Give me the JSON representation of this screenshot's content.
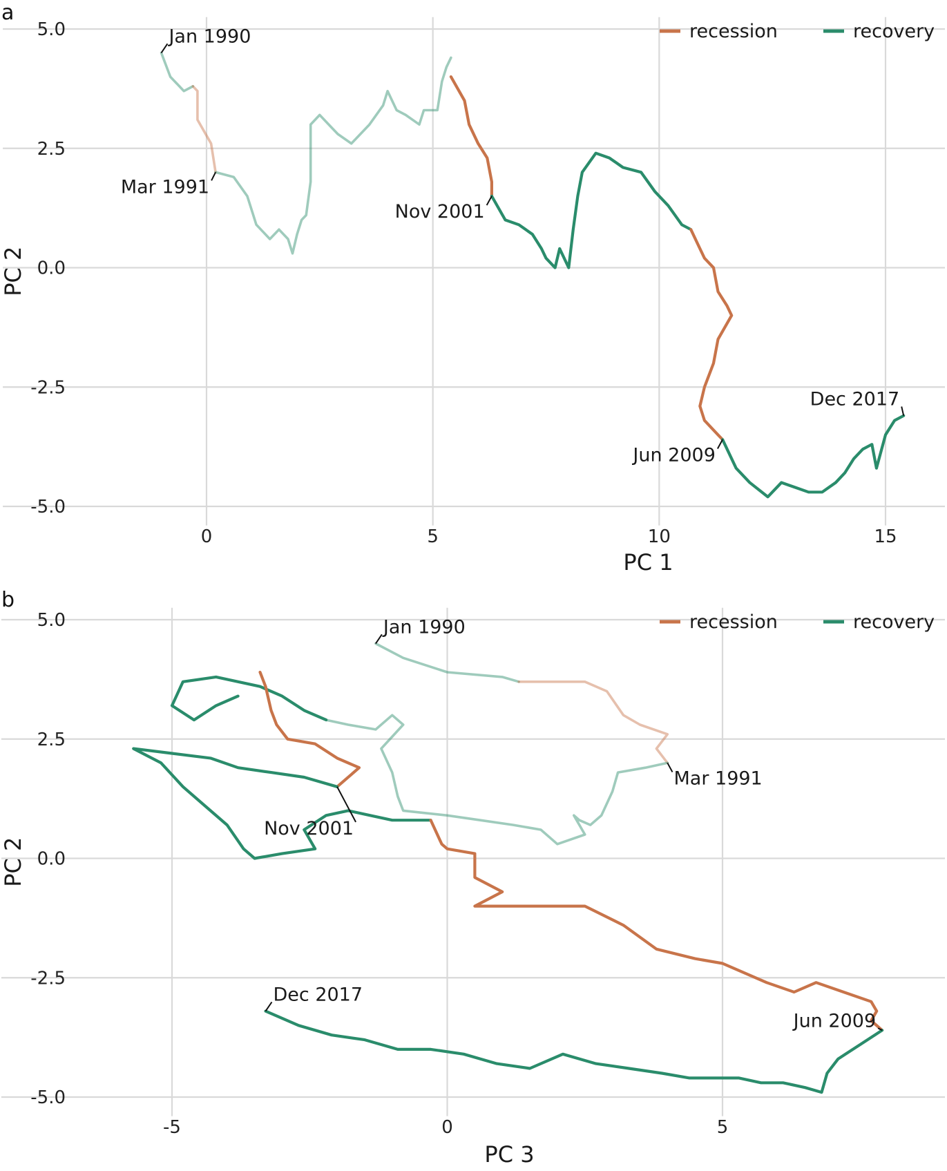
{
  "chart_data": [
    {
      "panel_label": "a",
      "type": "line",
      "xlabel": "PC 1",
      "ylabel": "PC 2",
      "xlim": [
        -4.5,
        16.5
      ],
      "ylim": [
        -5.4,
        5.25
      ],
      "x_ticks": [
        0,
        5,
        10,
        15
      ],
      "x_tick_labels": [
        "0",
        "5",
        "10",
        "15"
      ],
      "y_ticks": [
        -5,
        -2.5,
        0,
        2.5,
        5
      ],
      "y_tick_labels": [
        "-5.0",
        "-2.5",
        "0.0",
        "2.5",
        "5.0"
      ],
      "grid": true,
      "legend": {
        "placement": "top-right",
        "entries": [
          {
            "label": "recession",
            "color": "#c8744a"
          },
          {
            "label": "recovery",
            "color": "#2a8c6b"
          }
        ]
      },
      "series": [
        {
          "phase": "recovery",
          "faded": true,
          "points": [
            [
              -1.0,
              4.5
            ],
            [
              -0.8,
              4.0
            ],
            [
              -0.6,
              3.8
            ],
            [
              -0.5,
              3.7
            ],
            [
              -0.3,
              3.8
            ]
          ]
        },
        {
          "phase": "recession",
          "faded": true,
          "points": [
            [
              -0.3,
              3.8
            ],
            [
              -0.2,
              3.7
            ],
            [
              -0.2,
              3.1
            ],
            [
              0.1,
              2.6
            ],
            [
              0.2,
              2.0
            ]
          ]
        },
        {
          "phase": "recovery",
          "faded": true,
          "points": [
            [
              0.2,
              2.0
            ],
            [
              0.6,
              1.9
            ],
            [
              0.9,
              1.5
            ],
            [
              1.1,
              0.9
            ],
            [
              1.4,
              0.6
            ],
            [
              1.6,
              0.8
            ],
            [
              1.8,
              0.6
            ],
            [
              1.9,
              0.3
            ],
            [
              2.0,
              0.7
            ],
            [
              2.1,
              1.0
            ],
            [
              2.2,
              1.1
            ],
            [
              2.3,
              1.8
            ],
            [
              2.3,
              2.5
            ],
            [
              2.3,
              3.0
            ],
            [
              2.5,
              3.2
            ],
            [
              2.7,
              3.0
            ],
            [
              2.9,
              2.8
            ],
            [
              3.2,
              2.6
            ],
            [
              3.4,
              2.8
            ],
            [
              3.6,
              3.0
            ],
            [
              3.9,
              3.4
            ],
            [
              4.0,
              3.7
            ],
            [
              4.2,
              3.3
            ],
            [
              4.4,
              3.2
            ],
            [
              4.7,
              3.0
            ],
            [
              4.8,
              3.3
            ],
            [
              5.1,
              3.3
            ],
            [
              5.2,
              3.9
            ],
            [
              5.3,
              4.2
            ],
            [
              5.4,
              4.4
            ]
          ]
        },
        {
          "phase": "recession",
          "faded": false,
          "points": [
            [
              5.4,
              4.0
            ],
            [
              5.7,
              3.5
            ],
            [
              5.8,
              3.0
            ],
            [
              6.0,
              2.6
            ],
            [
              6.2,
              2.3
            ],
            [
              6.3,
              1.8
            ],
            [
              6.3,
              1.5
            ]
          ]
        },
        {
          "phase": "recovery",
          "faded": false,
          "points": [
            [
              6.3,
              1.5
            ],
            [
              6.6,
              1.0
            ],
            [
              6.9,
              0.9
            ],
            [
              7.2,
              0.7
            ],
            [
              7.4,
              0.4
            ],
            [
              7.5,
              0.2
            ],
            [
              7.7,
              0.0
            ],
            [
              7.8,
              0.4
            ],
            [
              8.0,
              0.0
            ],
            [
              8.1,
              0.8
            ],
            [
              8.2,
              1.5
            ],
            [
              8.3,
              2.0
            ],
            [
              8.6,
              2.4
            ],
            [
              8.9,
              2.3
            ],
            [
              9.2,
              2.1
            ],
            [
              9.6,
              2.0
            ],
            [
              9.9,
              1.6
            ],
            [
              10.2,
              1.3
            ],
            [
              10.5,
              0.9
            ],
            [
              10.7,
              0.8
            ]
          ]
        },
        {
          "phase": "recession",
          "faded": false,
          "points": [
            [
              10.7,
              0.8
            ],
            [
              10.9,
              0.4
            ],
            [
              11.0,
              0.2
            ],
            [
              11.2,
              0.0
            ],
            [
              11.3,
              -0.5
            ],
            [
              11.5,
              -0.8
            ],
            [
              11.6,
              -1.0
            ],
            [
              11.3,
              -1.5
            ],
            [
              11.2,
              -2.0
            ],
            [
              11.0,
              -2.5
            ],
            [
              10.9,
              -2.9
            ],
            [
              11.0,
              -3.2
            ],
            [
              11.3,
              -3.5
            ],
            [
              11.4,
              -3.6
            ]
          ]
        },
        {
          "phase": "recovery",
          "faded": false,
          "points": [
            [
              11.4,
              -3.6
            ],
            [
              11.7,
              -4.2
            ],
            [
              12.0,
              -4.5
            ],
            [
              12.4,
              -4.8
            ],
            [
              12.7,
              -4.5
            ],
            [
              13.0,
              -4.6
            ],
            [
              13.3,
              -4.7
            ],
            [
              13.6,
              -4.7
            ],
            [
              13.9,
              -4.5
            ],
            [
              14.1,
              -4.3
            ],
            [
              14.3,
              -4.0
            ],
            [
              14.5,
              -3.8
            ],
            [
              14.7,
              -3.7
            ],
            [
              14.8,
              -4.2
            ],
            [
              15.0,
              -3.5
            ],
            [
              15.2,
              -3.2
            ],
            [
              15.4,
              -3.1
            ]
          ]
        }
      ],
      "annotations": [
        {
          "text": "Jan 1990",
          "x": -1.0,
          "y": 4.5
        },
        {
          "text": "Mar 1991",
          "x": 0.2,
          "y": 2.0
        },
        {
          "text": "Nov 2001",
          "x": 6.3,
          "y": 1.5
        },
        {
          "text": "Jun 2009",
          "x": 11.4,
          "y": -3.6
        },
        {
          "text": "Dec 2017",
          "x": 15.4,
          "y": -3.1
        }
      ]
    },
    {
      "panel_label": "b",
      "type": "line",
      "xlabel": "PC 3",
      "ylabel": "PC 2",
      "xlim": [
        -8.1,
        9.3
      ],
      "ylim": [
        -5.4,
        5.25
      ],
      "x_ticks": [
        -5,
        0,
        5
      ],
      "x_tick_labels": [
        "-5",
        "0",
        "5"
      ],
      "y_ticks": [
        -5,
        -2.5,
        0,
        2.5,
        5
      ],
      "y_tick_labels": [
        "-5.0",
        "-2.5",
        "0.0",
        "2.5",
        "5.0"
      ],
      "grid": true,
      "legend": {
        "placement": "top-right",
        "entries": [
          {
            "label": "recession",
            "color": "#c8744a"
          },
          {
            "label": "recovery",
            "color": "#2a8c6b"
          }
        ]
      },
      "series": [
        {
          "phase": "recovery",
          "faded": true,
          "points": [
            [
              -1.3,
              4.5
            ],
            [
              -0.8,
              4.2
            ],
            [
              0.0,
              3.9
            ],
            [
              1.0,
              3.8
            ],
            [
              1.3,
              3.7
            ]
          ]
        },
        {
          "phase": "recession",
          "faded": true,
          "points": [
            [
              1.3,
              3.7
            ],
            [
              2.5,
              3.7
            ],
            [
              2.9,
              3.5
            ],
            [
              3.2,
              3.0
            ],
            [
              3.5,
              2.8
            ],
            [
              4.0,
              2.6
            ],
            [
              3.8,
              2.3
            ],
            [
              4.0,
              2.0
            ]
          ]
        },
        {
          "phase": "recovery",
          "faded": true,
          "points": [
            [
              4.0,
              2.0
            ],
            [
              3.6,
              1.9
            ],
            [
              3.1,
              1.8
            ],
            [
              3.0,
              1.4
            ],
            [
              2.8,
              0.9
            ],
            [
              2.6,
              0.7
            ],
            [
              2.4,
              0.8
            ],
            [
              2.3,
              0.9
            ],
            [
              2.5,
              0.5
            ],
            [
              2.0,
              0.3
            ],
            [
              1.7,
              0.6
            ],
            [
              1.2,
              0.7
            ],
            [
              0.6,
              0.8
            ],
            [
              0.0,
              0.9
            ],
            [
              -0.8,
              1.0
            ],
            [
              -0.9,
              1.3
            ],
            [
              -1.0,
              1.8
            ],
            [
              -1.2,
              2.3
            ],
            [
              -0.8,
              2.8
            ],
            [
              -1.0,
              3.0
            ],
            [
              -1.3,
              2.7
            ],
            [
              -1.8,
              2.8
            ],
            [
              -2.2,
              2.9
            ]
          ]
        },
        {
          "phase": "recovery",
          "faded": false,
          "points": [
            [
              -2.2,
              2.9
            ],
            [
              -2.6,
              3.1
            ],
            [
              -3.0,
              3.4
            ],
            [
              -3.4,
              3.6
            ],
            [
              -4.2,
              3.8
            ],
            [
              -4.8,
              3.7
            ],
            [
              -5.0,
              3.2
            ],
            [
              -4.6,
              2.9
            ],
            [
              -4.2,
              3.2
            ],
            [
              -3.8,
              3.4
            ]
          ]
        },
        {
          "phase": "recession",
          "faded": false,
          "points": [
            [
              -3.4,
              3.9
            ],
            [
              -3.3,
              3.6
            ],
            [
              -3.2,
              3.1
            ],
            [
              -3.1,
              2.8
            ],
            [
              -2.9,
              2.5
            ],
            [
              -2.4,
              2.4
            ],
            [
              -2.0,
              2.1
            ],
            [
              -1.6,
              1.9
            ],
            [
              -2.0,
              1.5
            ]
          ]
        },
        {
          "phase": "recovery",
          "faded": false,
          "points": [
            [
              -2.0,
              1.5
            ],
            [
              -2.6,
              1.7
            ],
            [
              -3.2,
              1.8
            ],
            [
              -3.8,
              1.9
            ],
            [
              -4.3,
              2.1
            ],
            [
              -5.0,
              2.2
            ],
            [
              -5.7,
              2.3
            ],
            [
              -5.2,
              2.0
            ],
            [
              -4.8,
              1.5
            ],
            [
              -4.4,
              1.1
            ],
            [
              -4.0,
              0.7
            ],
            [
              -3.7,
              0.2
            ],
            [
              -3.5,
              0.0
            ],
            [
              -3.0,
              0.1
            ],
            [
              -2.4,
              0.2
            ],
            [
              -2.6,
              0.6
            ],
            [
              -2.2,
              0.9
            ],
            [
              -1.8,
              1.0
            ],
            [
              -1.4,
              0.9
            ],
            [
              -1.0,
              0.8
            ],
            [
              -0.6,
              0.8
            ],
            [
              -0.3,
              0.8
            ]
          ]
        },
        {
          "phase": "recession",
          "faded": false,
          "points": [
            [
              -0.3,
              0.8
            ],
            [
              -0.1,
              0.3
            ],
            [
              0.0,
              0.2
            ],
            [
              0.5,
              0.1
            ],
            [
              0.5,
              -0.4
            ],
            [
              1.0,
              -0.7
            ],
            [
              0.5,
              -1.0
            ],
            [
              1.5,
              -1.0
            ],
            [
              2.5,
              -1.0
            ],
            [
              3.2,
              -1.4
            ],
            [
              3.8,
              -1.9
            ],
            [
              4.5,
              -2.1
            ],
            [
              5.0,
              -2.2
            ],
            [
              5.8,
              -2.6
            ],
            [
              6.3,
              -2.8
            ],
            [
              6.7,
              -2.6
            ],
            [
              7.2,
              -2.8
            ],
            [
              7.7,
              -3.0
            ],
            [
              7.8,
              -3.2
            ],
            [
              7.7,
              -3.4
            ],
            [
              7.9,
              -3.6
            ]
          ]
        },
        {
          "phase": "recovery",
          "faded": false,
          "points": [
            [
              7.9,
              -3.6
            ],
            [
              7.5,
              -3.9
            ],
            [
              7.1,
              -4.2
            ],
            [
              6.9,
              -4.5
            ],
            [
              6.8,
              -4.9
            ],
            [
              6.5,
              -4.8
            ],
            [
              6.1,
              -4.7
            ],
            [
              5.7,
              -4.7
            ],
            [
              5.3,
              -4.6
            ],
            [
              4.9,
              -4.6
            ],
            [
              4.4,
              -4.6
            ],
            [
              3.9,
              -4.5
            ],
            [
              3.3,
              -4.4
            ],
            [
              2.7,
              -4.3
            ],
            [
              2.1,
              -4.1
            ],
            [
              1.5,
              -4.4
            ],
            [
              0.9,
              -4.3
            ],
            [
              0.3,
              -4.1
            ],
            [
              -0.3,
              -4.0
            ],
            [
              -0.9,
              -4.0
            ],
            [
              -1.5,
              -3.8
            ],
            [
              -2.1,
              -3.7
            ],
            [
              -2.7,
              -3.5
            ],
            [
              -3.3,
              -3.2
            ]
          ]
        }
      ],
      "annotations": [
        {
          "text": "Jan 1990",
          "x": -1.3,
          "y": 4.5
        },
        {
          "text": "Mar 1991",
          "x": 4.0,
          "y": 2.0
        },
        {
          "text": "Nov 2001",
          "x": -2.0,
          "y": 1.5
        },
        {
          "text": "Jun 2009",
          "x": 7.9,
          "y": -3.6
        },
        {
          "text": "Dec 2017",
          "x": -3.3,
          "y": -3.2
        }
      ]
    }
  ]
}
